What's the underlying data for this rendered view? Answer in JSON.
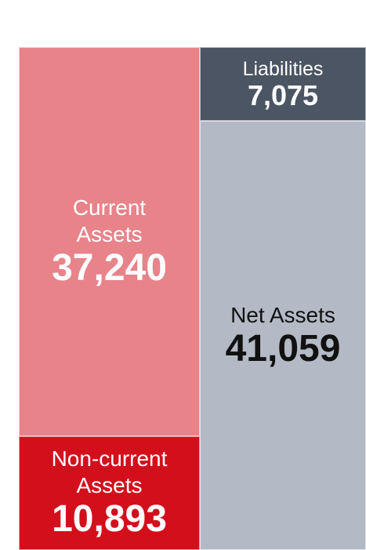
{
  "chart_data": {
    "type": "bar",
    "stacked": true,
    "categories": [
      null,
      null
    ],
    "ylim": [
      0,
      48134
    ],
    "series": [
      {
        "name": "Non-current Assets",
        "color": "#d40f1c",
        "text_color": "#ffffff",
        "values": [
          10893,
          null
        ],
        "value_labels": [
          "10,893",
          null
        ]
      },
      {
        "name": "Current Assets",
        "color": "#e8838a",
        "text_color": "#ffffff",
        "values": [
          37240,
          null
        ],
        "value_labels": [
          "37,240",
          null
        ]
      },
      {
        "name": "Net Assets",
        "color": "#b3bac6",
        "text_color": "#111111",
        "values": [
          null,
          41059
        ],
        "value_labels": [
          null,
          "41,059"
        ]
      },
      {
        "name": "Liabilities",
        "color": "#4b5563",
        "text_color": "#ffffff",
        "values": [
          null,
          7075
        ],
        "value_labels": [
          null,
          "7,075"
        ]
      }
    ]
  }
}
